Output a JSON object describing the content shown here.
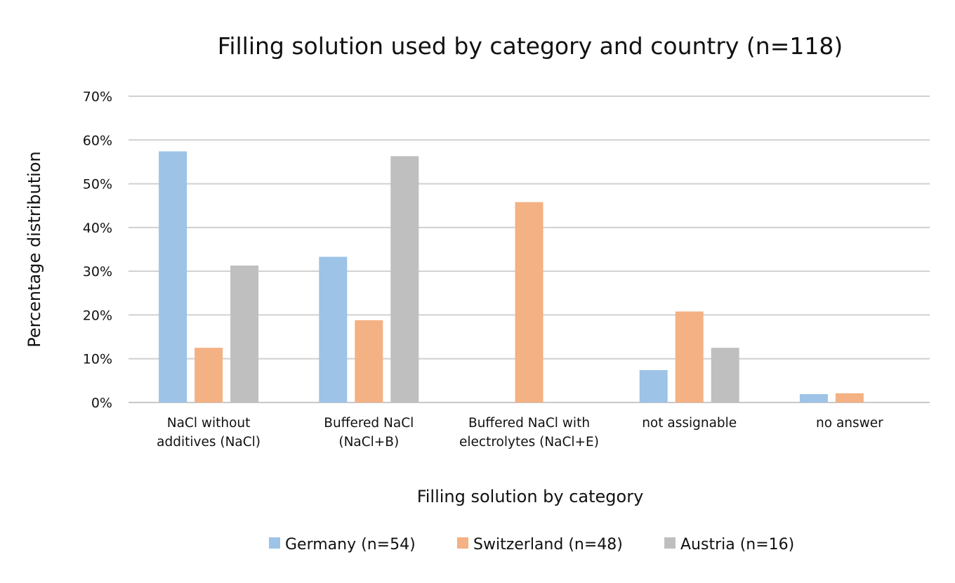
{
  "chart_data": {
    "type": "bar",
    "title": "Filling solution used by category and country (n=118)",
    "xlabel": "Filling solution by category",
    "ylabel": "Percentage distribution",
    "ylim": [
      0,
      70
    ],
    "yticks": [
      "0%",
      "10%",
      "20%",
      "30%",
      "40%",
      "50%",
      "60%",
      "70%"
    ],
    "grid": true,
    "legend_position": "bottom",
    "categories": [
      [
        "NaCl without",
        "additives (NaCl)"
      ],
      [
        "Buffered NaCl",
        "(NaCl+B)"
      ],
      [
        "Buffered NaCl with",
        "electrolytes (NaCl+E)"
      ],
      [
        "not assignable"
      ],
      [
        "no answer"
      ]
    ],
    "series": [
      {
        "name": "Germany (n=54)",
        "color": "#9dc3e6",
        "values": [
          57.4,
          33.3,
          0,
          7.4,
          1.9
        ]
      },
      {
        "name": "Switzerland (n=48)",
        "color": "#f4b183",
        "values": [
          12.5,
          18.8,
          45.8,
          20.8,
          2.1
        ]
      },
      {
        "name": "Austria (n=16)",
        "color": "#bfbfbf",
        "values": [
          31.3,
          56.3,
          0,
          12.5,
          0
        ]
      }
    ]
  }
}
